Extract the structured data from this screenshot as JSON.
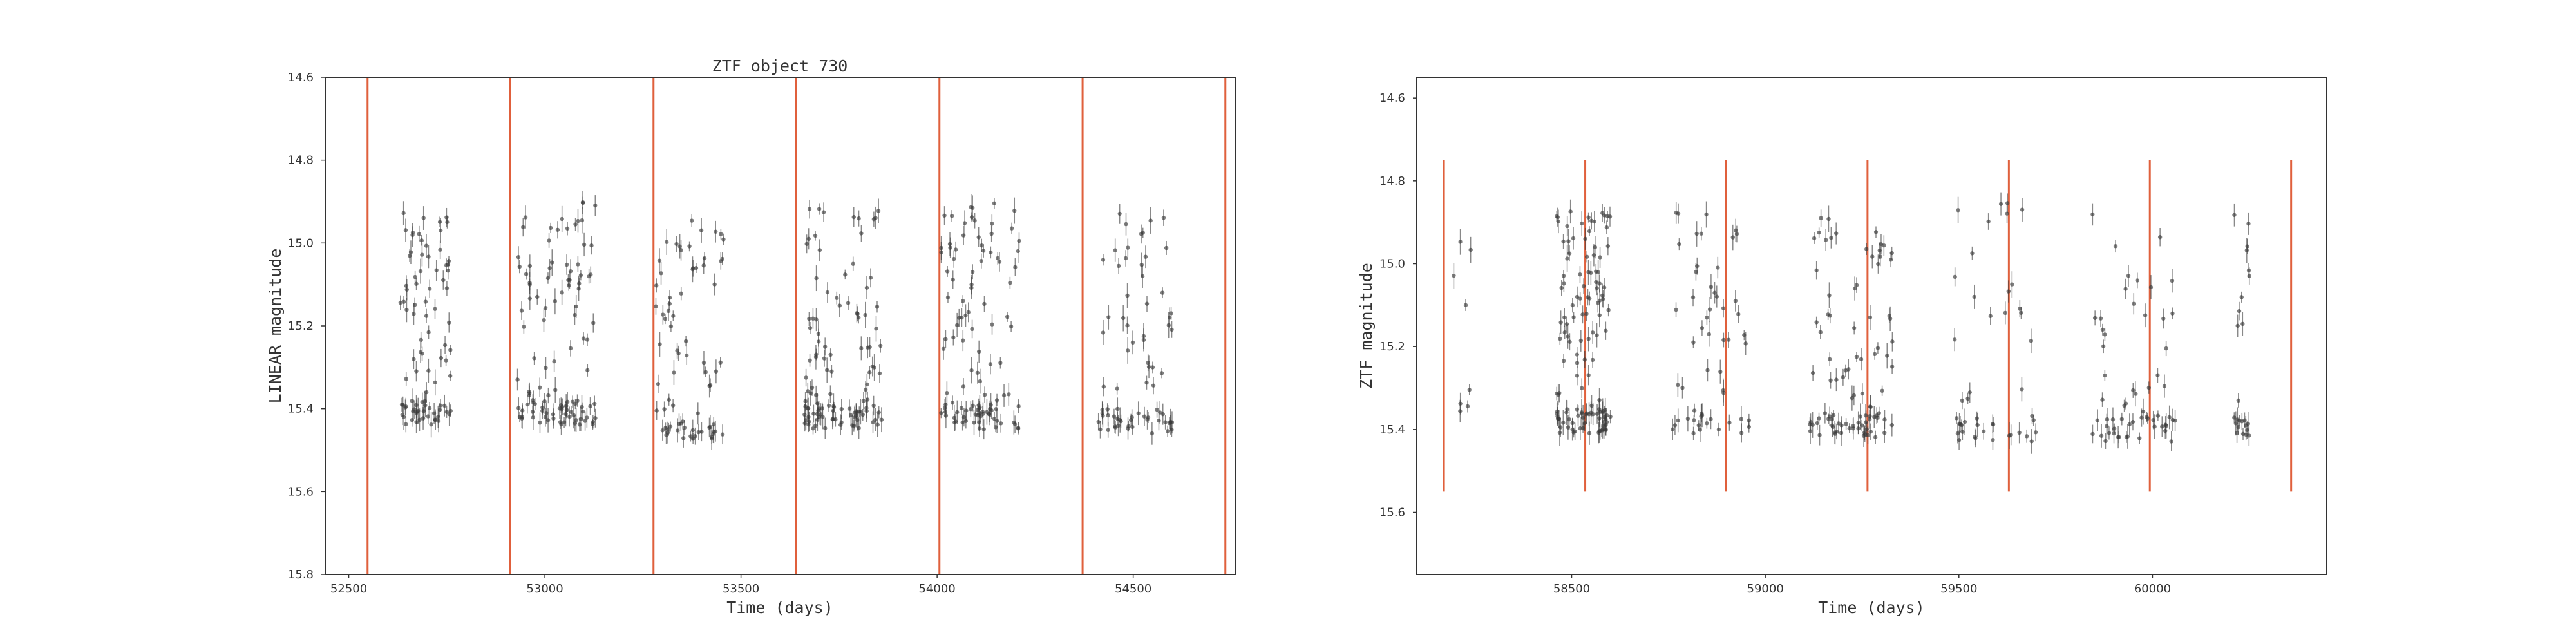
{
  "figure_title": "ZTF object 730",
  "colors": {
    "marker": "#3a3a3a",
    "vline": "#e0603c",
    "frame": "#333333"
  },
  "chart_data": [
    {
      "type": "scatter",
      "title": "ZTF object 730",
      "xlabel": "Time (days)",
      "ylabel": "LINEAR magnitude",
      "xlim": [
        52440,
        54760
      ],
      "ylim": [
        15.8,
        14.6
      ],
      "y_inverted": true,
      "xticks": [
        52500,
        53000,
        53500,
        54000,
        54500
      ],
      "yticks": [
        14.6,
        14.8,
        15.0,
        15.2,
        15.4,
        15.6,
        15.8
      ],
      "ytick_labels": [
        "14.6",
        "14.8",
        "15.0",
        "15.2",
        "15.4",
        "15.6",
        "15.8"
      ],
      "grid": false,
      "vertical_lines": [
        52548,
        52912,
        53277,
        53641,
        54006,
        54371,
        54735
      ],
      "vline_range": [
        15.8,
        14.6
      ],
      "clusters": [
        {
          "x_start": 52630,
          "x_end": 52760,
          "y_range": [
            14.92,
            15.44
          ],
          "count": 90
        },
        {
          "x_start": 52930,
          "x_end": 53140,
          "y_range": [
            14.9,
            15.44
          ],
          "count": 110
        },
        {
          "x_start": 53280,
          "x_end": 53460,
          "y_range": [
            14.94,
            15.49
          ],
          "count": 75
        },
        {
          "x_start": 53660,
          "x_end": 53860,
          "y_range": [
            14.91,
            15.45
          ],
          "count": 115
        },
        {
          "x_start": 54010,
          "x_end": 54210,
          "y_range": [
            14.9,
            15.45
          ],
          "count": 110
        },
        {
          "x_start": 54410,
          "x_end": 54600,
          "y_range": [
            14.9,
            15.46
          ],
          "count": 75
        }
      ]
    },
    {
      "type": "scatter",
      "title": "",
      "xlabel": "Time (days)",
      "ylabel": "ZTF magnitude",
      "xlim": [
        58100,
        60450
      ],
      "ylim": [
        15.75,
        14.55
      ],
      "y_inverted": true,
      "xticks": [
        58500,
        59000,
        59500,
        60000
      ],
      "yticks": [
        14.6,
        14.8,
        15.0,
        15.2,
        15.4,
        15.6
      ],
      "ytick_labels": [
        "14.6",
        "14.8",
        "15.0",
        "15.2",
        "15.4",
        "15.6"
      ],
      "grid": false,
      "vertical_lines": [
        58170,
        58535,
        58899,
        59264,
        59629,
        59993,
        60358
      ],
      "vline_range": [
        15.55,
        14.75
      ],
      "clusters": [
        {
          "x_start": 58190,
          "x_end": 58240,
          "y_range": [
            14.92,
            15.38
          ],
          "count": 8
        },
        {
          "x_start": 58460,
          "x_end": 58600,
          "y_range": [
            14.87,
            15.41
          ],
          "count": 130
        },
        {
          "x_start": 58760,
          "x_end": 58960,
          "y_range": [
            14.87,
            15.41
          ],
          "count": 55
        },
        {
          "x_start": 59110,
          "x_end": 59330,
          "y_range": [
            14.88,
            15.42
          ],
          "count": 95
        },
        {
          "x_start": 59480,
          "x_end": 59700,
          "y_range": [
            14.84,
            15.43
          ],
          "count": 45
        },
        {
          "x_start": 59840,
          "x_end": 60060,
          "y_range": [
            14.88,
            15.43
          ],
          "count": 60
        },
        {
          "x_start": 60210,
          "x_end": 60250,
          "y_range": [
            14.88,
            15.42
          ],
          "count": 25
        }
      ]
    }
  ]
}
